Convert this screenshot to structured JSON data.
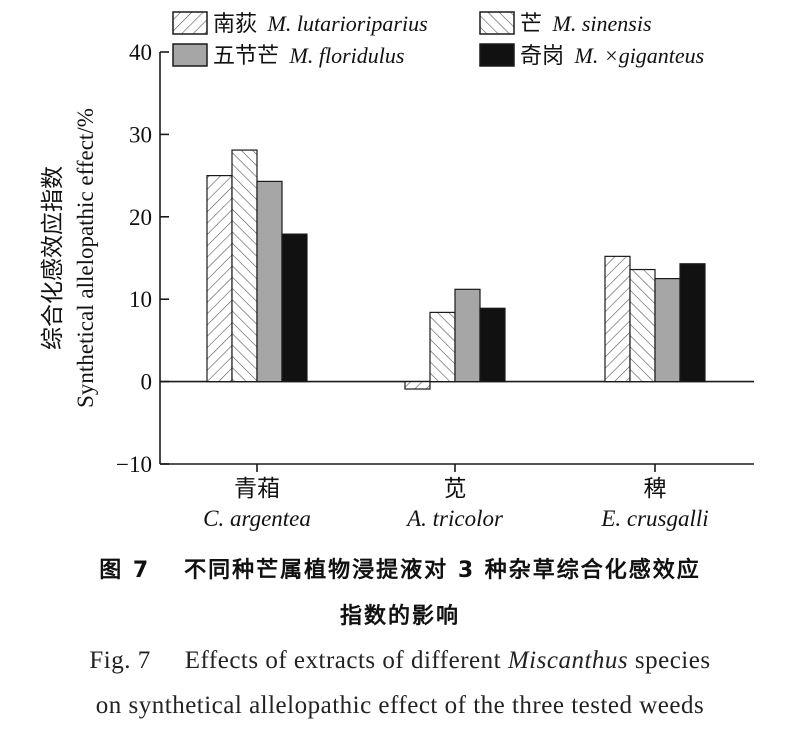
{
  "chart_data": {
    "type": "bar",
    "y_label_cn": "综合化感效应指数",
    "ylabel": "Synthetical allelopathic effect/%",
    "ylim": [
      -10,
      40
    ],
    "yticks": [
      "40",
      "30",
      "20",
      "10",
      "0",
      "−10"
    ],
    "categories": [
      {
        "cn": "青葙",
        "latin": "C. argentea"
      },
      {
        "cn": "苋",
        "latin": "A. tricolor"
      },
      {
        "cn": "稗",
        "latin": "E. crusgalli"
      }
    ],
    "series": [
      {
        "name_cn": "南荻",
        "name_latin": "M. lutarioriparius",
        "pattern": "hatch-right",
        "values": [
          25.0,
          -0.9,
          15.2
        ]
      },
      {
        "name_cn": "芒",
        "name_latin": "M. sinensis",
        "pattern": "hatch-left",
        "values": [
          28.1,
          8.4,
          13.6
        ]
      },
      {
        "name_cn": "五节芒",
        "name_latin": "M. floridulus",
        "pattern": "gray",
        "values": [
          24.3,
          11.2,
          12.5
        ]
      },
      {
        "name_cn": "奇岗",
        "name_latin": "M. ×giganteus",
        "pattern": "black",
        "values": [
          17.9,
          8.9,
          14.3
        ]
      }
    ],
    "legend_position": "top",
    "grid": false
  },
  "caption": {
    "cn_fig": "图 7",
    "cn_line1": "不同种芒属植物浸提液对 3 种杂草综合化感效应",
    "cn_line2": "指数的影响",
    "en_fig": "Fig. 7",
    "en_line1_a": "Effects of extracts of different ",
    "en_line1_italic": "Miscanthus",
    "en_line1_b": " species",
    "en_line2": "on synthetical allelopathic effect of the three tested weeds"
  },
  "colors": {
    "gray_fill": "#a6a6a6",
    "black_fill": "#111111",
    "hatch_line": "#555555",
    "axis": "#1a1a1a"
  }
}
